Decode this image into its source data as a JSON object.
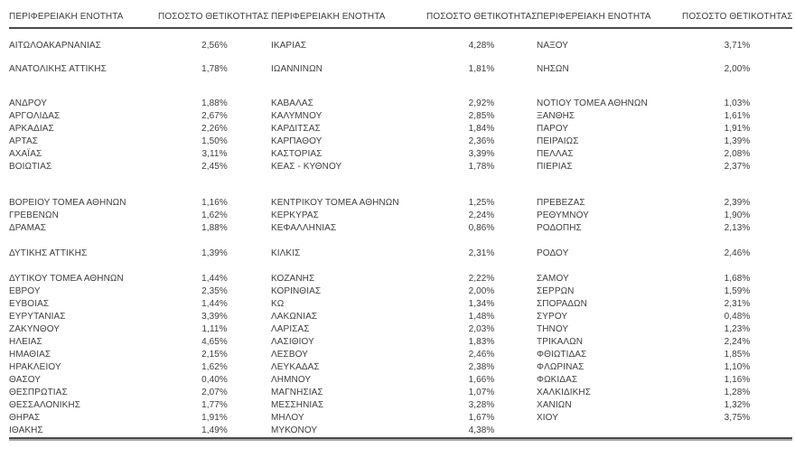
{
  "table": {
    "header": {
      "region_label": "ΠΕΡΙΦΕΡΕΙΑΚΗ ΕΝΟΤΗΤΑ",
      "pct_label": "ΠΟΣΟΣΤΟ ΘΕΤΙΚΟΤΗΤΑΣ"
    },
    "rows": [
      {
        "spacer": 12
      },
      {
        "cells": [
          "ΑΙΤΩΛΟΑΚΑΡΝΑΝΙΑΣ",
          "2,56%",
          "ΙΚΑΡΙΑΣ",
          "4,28%",
          "ΝΑΞΟΥ",
          "3,71%"
        ]
      },
      {
        "spacer": 12
      },
      {
        "cells": [
          "ΑΝΑΤΟΛΙΚΗΣ ΑΤΤΙΚΗΣ",
          "1,78%",
          "ΙΩΑΝΝΙΝΩΝ",
          "1,81%",
          "ΝΗΣΩΝ",
          "2,00%"
        ]
      },
      {
        "spacer": 24
      },
      {
        "cells": [
          "ΑΝΔΡΟΥ",
          "1,88%",
          "ΚΑΒΑΛΑΣ",
          "2,92%",
          "ΝΟΤΙΟΥ ΤΟΜΕΑ ΑΘΗΝΩΝ",
          "1,03%"
        ]
      },
      {
        "cells": [
          "ΑΡΓΟΛΙΔΑΣ",
          "2,67%",
          "ΚΑΛΥΜΝΟΥ",
          "2,85%",
          "ΞΑΝΘΗΣ",
          "1,61%"
        ]
      },
      {
        "cells": [
          "ΑΡΚΑΔΙΑΣ",
          "2,26%",
          "ΚΑΡΔΙΤΣΑΣ",
          "1,84%",
          "ΠΑΡΟΥ",
          "1,91%"
        ]
      },
      {
        "cells": [
          "ΑΡΤΑΣ",
          "1,50%",
          "ΚΑΡΠΑΘΟΥ",
          "2,36%",
          "ΠΕΙΡΑΙΩΣ",
          "1,39%"
        ]
      },
      {
        "cells": [
          "ΑΧΑΪΑΣ",
          "3,11%",
          "ΚΑΣΤΟΡΙΑΣ",
          "3,39%",
          "ΠΕΛΛΑΣ",
          "2,08%"
        ]
      },
      {
        "cells": [
          "ΒΟΙΩΤΙΑΣ",
          "2,45%",
          "ΚΕΑΣ - ΚΥΘΝΟΥ",
          "1,78%",
          "ΠΙΕΡΙΑΣ",
          "2,37%"
        ]
      },
      {
        "spacer": 26
      },
      {
        "cells": [
          "ΒΟΡΕΙΟΥ ΤΟΜΕΑ ΑΘΗΝΩΝ",
          "1,16%",
          "ΚΕΝΤΡΙΚΟΥ ΤΟΜΕΑ ΑΘΗΝΩΝ",
          "1,25%",
          "ΠΡΕΒΕΖΑΣ",
          "2,39%"
        ]
      },
      {
        "cells": [
          "ΓΡΕΒΕΝΩΝ",
          "1,62%",
          "ΚΕΡΚΥΡΑΣ",
          "2,24%",
          "ΡΕΘΥΜΝΟΥ",
          "1,90%"
        ]
      },
      {
        "cells": [
          "ΔΡΑΜΑΣ",
          "1,88%",
          "ΚΕΦΑΛΛΗΝΙΑΣ",
          "0,86%",
          "ΡΟΔΟΠΗΣ",
          "2,13%"
        ]
      },
      {
        "spacer": 14
      },
      {
        "cells": [
          "ΔΥΤΙΚΗΣ ΑΤΤΙΚΗΣ",
          "1,39%",
          "ΚΙΛΚΙΣ",
          "2,31%",
          "ΡΟΔΟΥ",
          "2,46%"
        ]
      },
      {
        "spacer": 14
      },
      {
        "cells": [
          "ΔΥΤΙΚΟΥ ΤΟΜΕΑ ΑΘΗΝΩΝ",
          "1,44%",
          "ΚΟΖΑΝΗΣ",
          "2,22%",
          "ΣΑΜΟΥ",
          "1,68%"
        ]
      },
      {
        "cells": [
          "ΕΒΡΟΥ",
          "2,35%",
          "ΚΟΡΙΝΘΙΑΣ",
          "2,00%",
          "ΣΕΡΡΩΝ",
          "1,59%"
        ]
      },
      {
        "cells": [
          "ΕΥΒΟΙΑΣ",
          "1,44%",
          "ΚΩ",
          "1,34%",
          "ΣΠΟΡΑΔΩΝ",
          "2,31%"
        ]
      },
      {
        "cells": [
          "ΕΥΡΥΤΑΝΙΑΣ",
          "3,39%",
          "ΛΑΚΩΝΙΑΣ",
          "1,48%",
          "ΣΥΡΟΥ",
          "0,48%"
        ]
      },
      {
        "cells": [
          "ΖΑΚΥΝΘΟΥ",
          "1,11%",
          "ΛΑΡΙΣΑΣ",
          "2,03%",
          "ΤΗΝΟΥ",
          "1,23%"
        ]
      },
      {
        "cells": [
          "ΗΛΕΙΑΣ",
          "4,65%",
          "ΛΑΣΙΘΙΟΥ",
          "1,83%",
          "ΤΡΙΚΑΛΩΝ",
          "2,24%"
        ]
      },
      {
        "cells": [
          "ΗΜΑΘΙΑΣ",
          "2,15%",
          "ΛΕΣΒΟΥ",
          "2,46%",
          "ΦΘΙΩΤΙΔΑΣ",
          "1,85%"
        ]
      },
      {
        "cells": [
          "ΗΡΑΚΛΕΙΟΥ",
          "1,62%",
          "ΛΕΥΚΑΔΑΣ",
          "2,38%",
          "ΦΛΩΡΙΝΑΣ",
          "1,10%"
        ]
      },
      {
        "cells": [
          "ΘΑΣΟΥ",
          "0,40%",
          "ΛΗΜΝΟΥ",
          "1,66%",
          "ΦΩΚΙΔΑΣ",
          "1,16%"
        ]
      },
      {
        "cells": [
          "ΘΕΣΠΡΩΤΙΑΣ",
          "2,07%",
          "ΜΑΓΝΗΣΙΑΣ",
          "1,07%",
          "ΧΑΛΚΙΔΙΚΗΣ",
          "1,28%"
        ]
      },
      {
        "cells": [
          "ΘΕΣΣΑΛΟΝΙΚΗΣ",
          "1,77%",
          "ΜΕΣΣΗΝΙΑΣ",
          "3,28%",
          "ΧΑΝΙΩΝ",
          "1,32%"
        ]
      },
      {
        "cells": [
          "ΘΗΡΑΣ",
          "1,91%",
          "ΜΗΛΟΥ",
          "1,67%",
          "ΧΙΟΥ",
          "3,75%"
        ]
      },
      {
        "cells": [
          "ΙΘΑΚΗΣ",
          "1,49%",
          "ΜΥΚΟΝΟΥ",
          "4,38%",
          "",
          ""
        ]
      }
    ]
  }
}
